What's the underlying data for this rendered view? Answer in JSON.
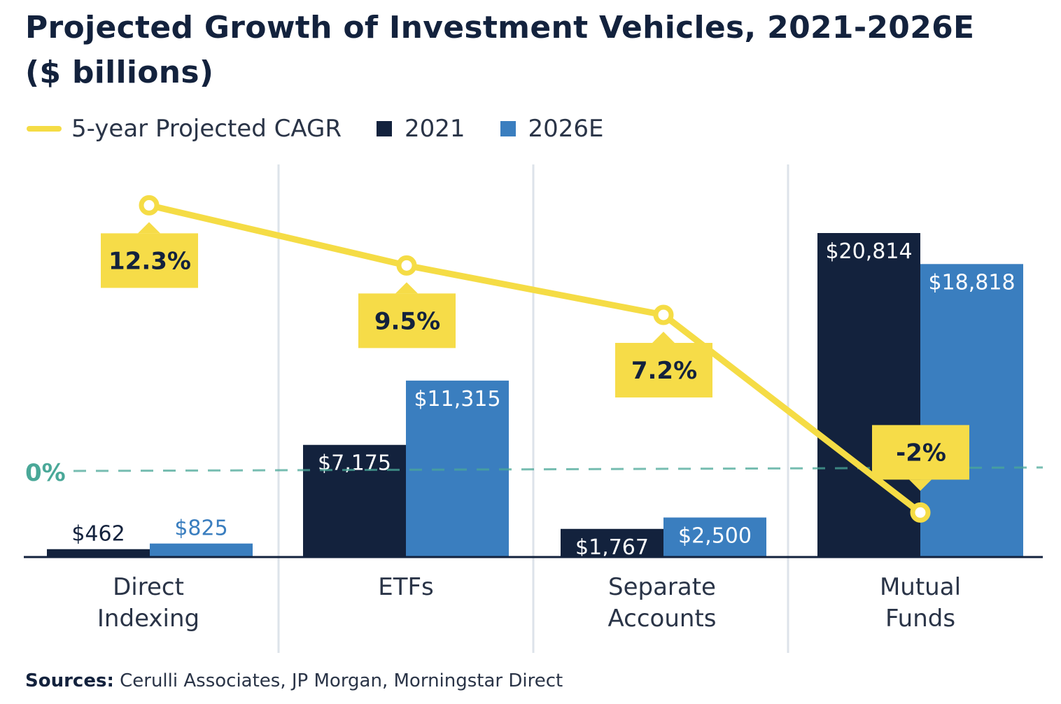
{
  "chart_data": {
    "type": "bar",
    "title": "Projected Growth of Investment Vehicles, 2021-2026E",
    "subtitle": "($ billions)",
    "categories": [
      [
        "Direct",
        "Indexing"
      ],
      [
        "ETFs"
      ],
      [
        "Separate",
        "Accounts"
      ],
      [
        "Mutual",
        "Funds"
      ]
    ],
    "series": [
      {
        "name": "2021",
        "values": [
          462,
          7175,
          1767,
          20814
        ],
        "labels": [
          "$462",
          "$7,175",
          "$1,767",
          "$20,814"
        ],
        "color": "#13223d"
      },
      {
        "name": "2026E",
        "values": [
          825,
          11315,
          2500,
          18818
        ],
        "labels": [
          "$825",
          "$11,315",
          "$2,500",
          "$18,818"
        ],
        "color": "#3a7ebf"
      }
    ],
    "line_series": {
      "name": "5-year Projected CAGR",
      "values": [
        12.3,
        9.5,
        7.2,
        -2
      ],
      "labels": [
        "12.3%",
        "9.5%",
        "7.2%",
        "-2%"
      ],
      "color": "#f5dc45"
    },
    "reference_line": {
      "label": "0%",
      "value": 0,
      "color": "#4aa898"
    },
    "grid": false,
    "legend_position": "top-left"
  },
  "legend": [
    "5-year Projected CAGR",
    "2021",
    "2026E"
  ],
  "source": {
    "label": "Sources:",
    "text": " Cerulli Associates, JP Morgan, Morningstar Direct"
  }
}
